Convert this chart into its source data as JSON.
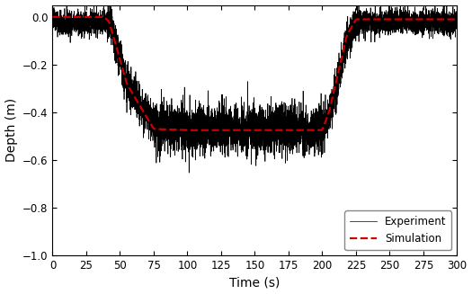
{
  "xlabel": "Time (s)",
  "ylabel": "Depth (m)",
  "xlim": [
    0,
    300
  ],
  "ylim": [
    -1.0,
    0.05
  ],
  "xticks": [
    0,
    25,
    50,
    75,
    100,
    125,
    150,
    175,
    200,
    225,
    250,
    275,
    300
  ],
  "yticks": [
    0.0,
    -0.2,
    -0.4,
    -0.6,
    -0.8,
    -1.0
  ],
  "legend_labels": [
    "Experiment",
    "Simulation"
  ],
  "exp_color": "#000000",
  "sim_color": "#cc0000",
  "background_color": "#ffffff",
  "sim_t_pts": [
    0,
    38,
    42,
    55,
    75,
    100,
    150,
    200,
    205,
    210,
    218,
    225,
    235,
    248,
    265,
    300
  ],
  "sim_d_pts": [
    0.0,
    0.0,
    -0.02,
    -0.28,
    -0.47,
    -0.475,
    -0.475,
    -0.475,
    -0.4,
    -0.28,
    -0.08,
    -0.01,
    -0.01,
    -0.01,
    -0.01,
    -0.01
  ],
  "noise_seed": 42,
  "noise_amplitude": 0.04,
  "noise_amplitude2": 0.02,
  "exp_t_pts": [
    0,
    8,
    12,
    40,
    43,
    55,
    75,
    100,
    140,
    175,
    200,
    205,
    210,
    218,
    225,
    228,
    240,
    300
  ],
  "exp_d_pts": [
    0.0,
    -0.04,
    -0.03,
    -0.02,
    -0.04,
    -0.28,
    -0.46,
    -0.47,
    -0.47,
    -0.47,
    -0.47,
    -0.41,
    -0.3,
    -0.1,
    -0.02,
    -0.02,
    -0.02,
    -0.02
  ]
}
